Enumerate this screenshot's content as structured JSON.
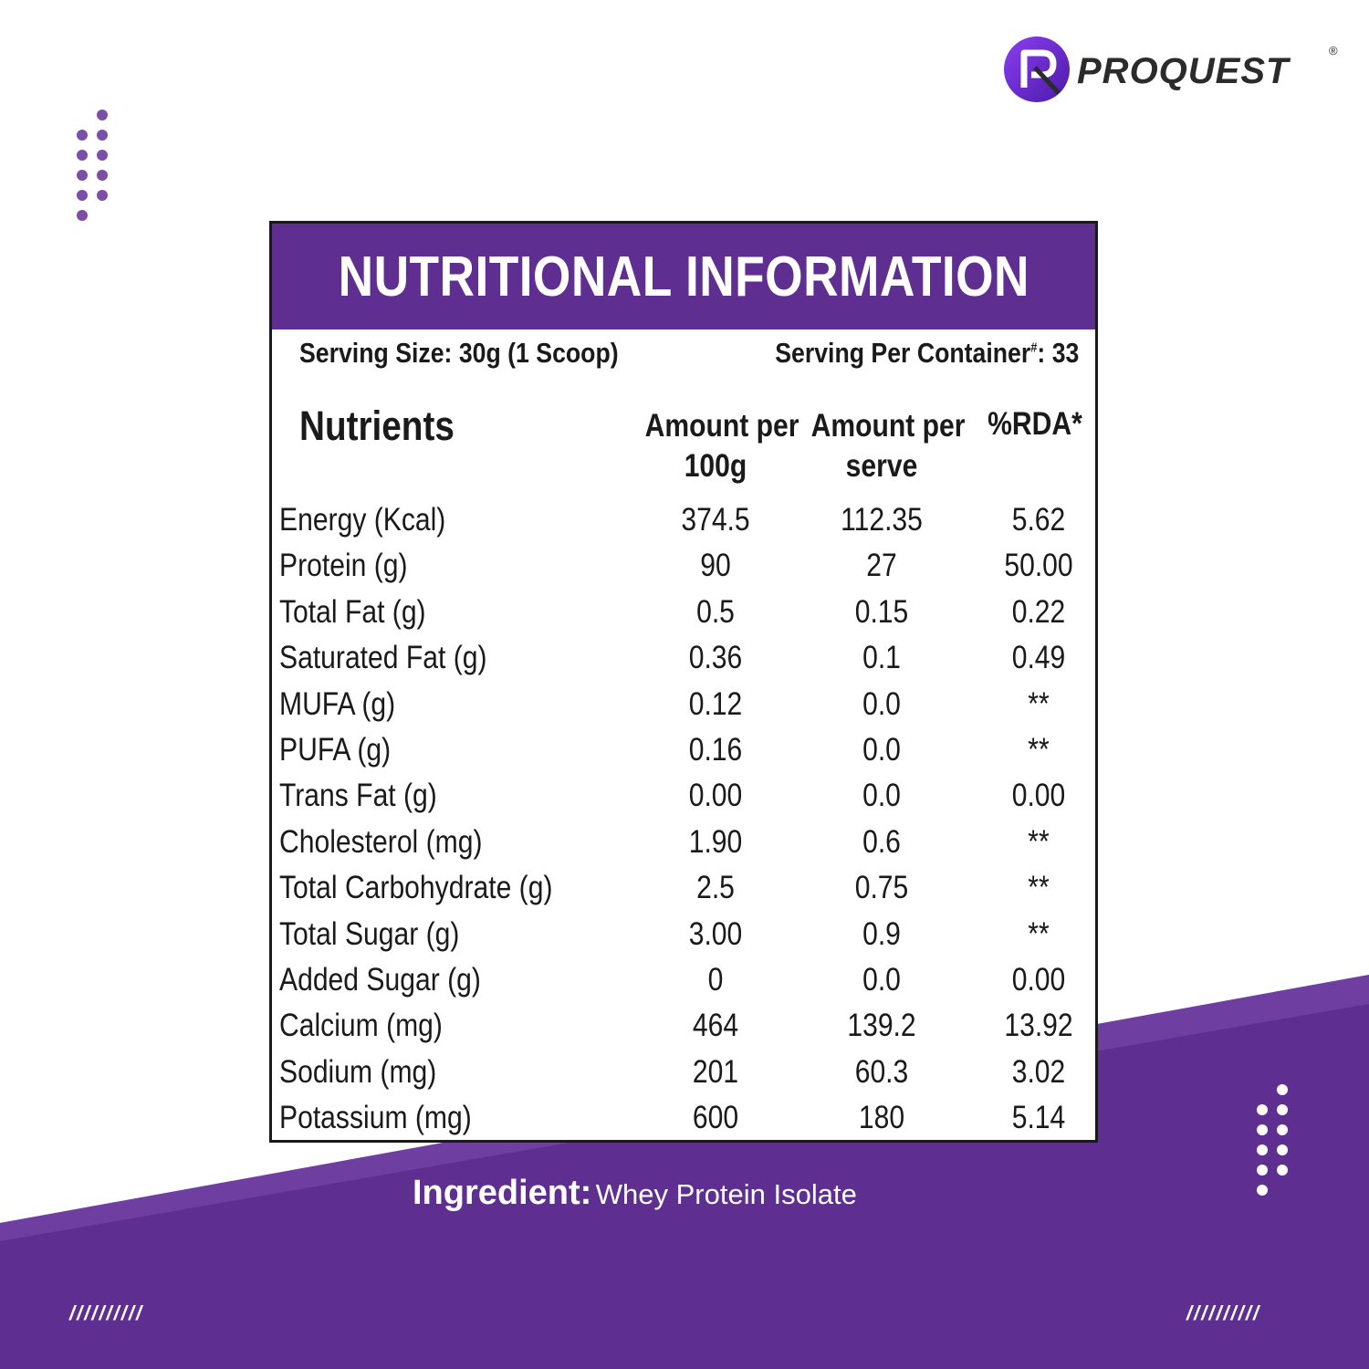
{
  "brand": {
    "name": "PROQUEST",
    "registered_mark": "®",
    "accent_color": "#5e2f90",
    "logo_gradient": [
      "#8a3ff0",
      "#4b1aa8"
    ]
  },
  "panel": {
    "title": "NUTRITIONAL INFORMATION",
    "serving_size": "Serving Size: 30g (1 Scoop)",
    "serving_per_label": "Serving Per Container",
    "serving_per_mark": "#",
    "serving_per_value": ": 33",
    "headers": {
      "nutrients": "Nutrients",
      "per_100g_line1": "Amount per",
      "per_100g_line2": "100g",
      "per_serve_line1": "Amount per",
      "per_serve_line2": "serve",
      "rda": "%RDA*"
    },
    "rows": [
      {
        "name": "Energy (Kcal)",
        "per_100g": "374.5",
        "per_serve": "112.35",
        "rda": "5.62"
      },
      {
        "name": "Protein (g)",
        "per_100g": "90",
        "per_serve": "27",
        "rda": "50.00"
      },
      {
        "name": "Total Fat (g)",
        "per_100g": "0.5",
        "per_serve": "0.15",
        "rda": "0.22"
      },
      {
        "name": "Saturated Fat (g)",
        "per_100g": "0.36",
        "per_serve": "0.1",
        "rda": "0.49"
      },
      {
        "name": "MUFA (g)",
        "per_100g": "0.12",
        "per_serve": "0.0",
        "rda": "**"
      },
      {
        "name": "PUFA (g)",
        "per_100g": "0.16",
        "per_serve": "0.0",
        "rda": "**"
      },
      {
        "name": "Trans Fat (g)",
        "per_100g": "0.00",
        "per_serve": "0.0",
        "rda": "0.00"
      },
      {
        "name": "Cholesterol (mg)",
        "per_100g": "1.90",
        "per_serve": "0.6",
        "rda": "**"
      },
      {
        "name": "Total Carbohydrate (g)",
        "per_100g": "2.5",
        "per_serve": "0.75",
        "rda": "**"
      },
      {
        "name": "Total Sugar (g)",
        "per_100g": "3.00",
        "per_serve": "0.9",
        "rda": "**"
      },
      {
        "name": "Added Sugar (g)",
        "per_100g": "0",
        "per_serve": "0.0",
        "rda": "0.00"
      },
      {
        "name": "Calcium (mg)",
        "per_100g": "464",
        "per_serve": "139.2",
        "rda": "13.92"
      },
      {
        "name": "Sodium (mg)",
        "per_100g": "201",
        "per_serve": "60.3",
        "rda": "3.02"
      },
      {
        "name": "Potassium (mg)",
        "per_100g": "600",
        "per_serve": "180",
        "rda": "5.14"
      }
    ]
  },
  "ingredient": {
    "label": "Ingredient:",
    "value": "Whey Protein Isolate"
  },
  "decor": {
    "slashes": "//////////"
  }
}
